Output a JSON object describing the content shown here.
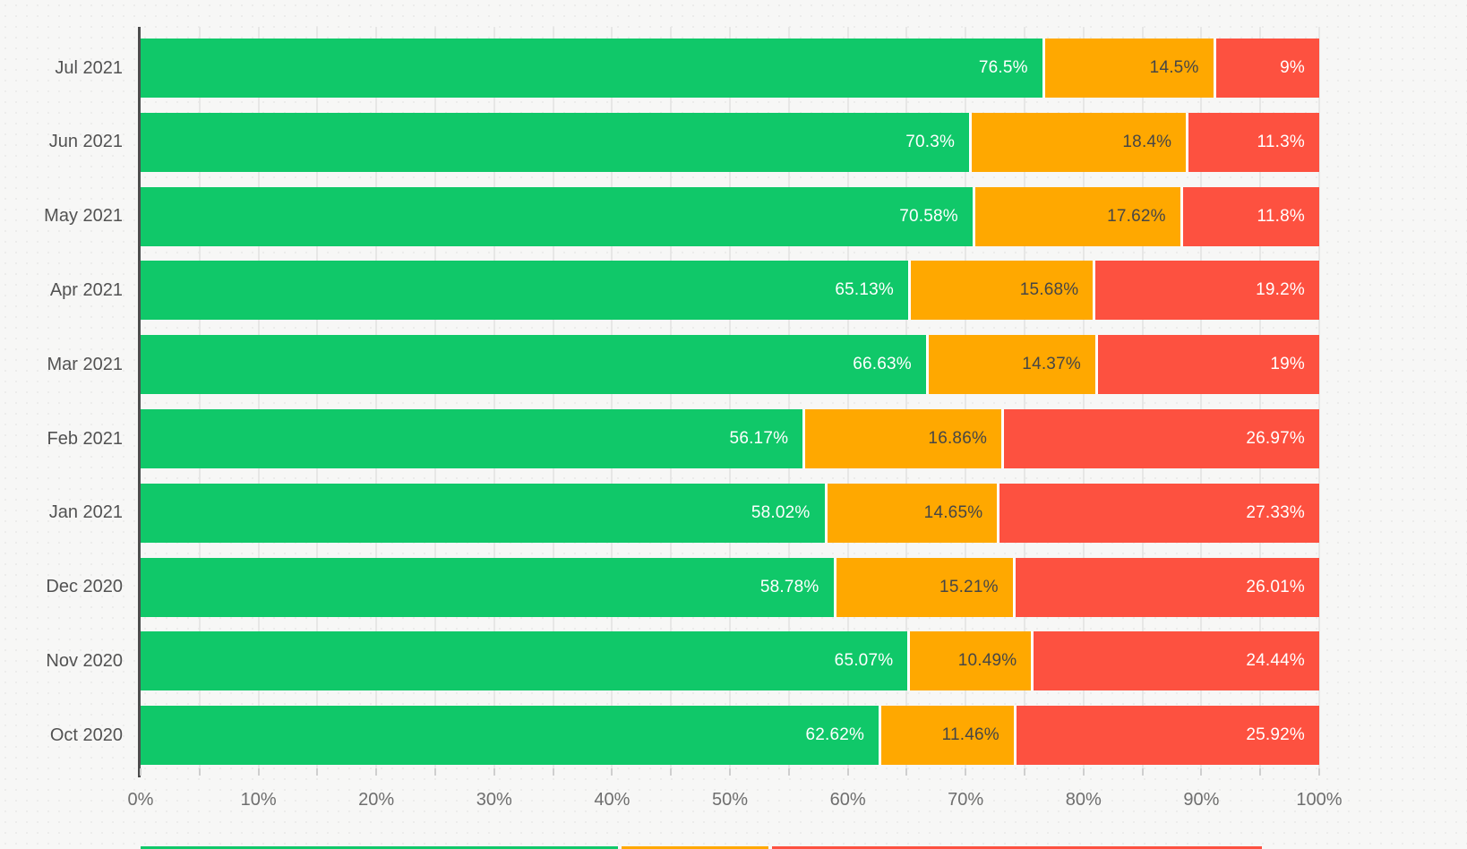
{
  "chart_data": {
    "type": "bar",
    "orientation": "horizontal",
    "stacked": true,
    "unit": "%",
    "legend": "none",
    "categories": [
      "Jul 2021",
      "Jun 2021",
      "May 2021",
      "Apr 2021",
      "Mar 2021",
      "Feb 2021",
      "Jan 2021",
      "Dec 2020",
      "Nov 2020",
      "Oct 2020"
    ],
    "series": [
      {
        "name": "green",
        "color": "#10C869",
        "label_color": "#ffffff",
        "values": [
          76.5,
          70.3,
          70.58,
          65.13,
          66.63,
          56.17,
          58.02,
          58.78,
          65.07,
          62.62
        ],
        "labels": [
          "76.5%",
          "70.3%",
          "70.58%",
          "65.13%",
          "66.63%",
          "56.17%",
          "58.02%",
          "58.78%",
          "65.07%",
          "62.62%"
        ]
      },
      {
        "name": "orange",
        "color": "#FFA800",
        "label_color": "#464646",
        "values": [
          14.5,
          18.4,
          17.62,
          15.68,
          14.37,
          16.86,
          14.65,
          15.21,
          10.49,
          11.46
        ],
        "labels": [
          "14.5%",
          "18.4%",
          "17.62%",
          "15.68%",
          "14.37%",
          "16.86%",
          "14.65%",
          "15.21%",
          "10.49%",
          "11.46%"
        ]
      },
      {
        "name": "red",
        "color": "#FD5140",
        "label_color": "#ffffff",
        "values": [
          9,
          11.3,
          11.8,
          19.2,
          19,
          26.97,
          27.33,
          26.01,
          24.44,
          25.92
        ],
        "labels": [
          "9%",
          "11.3%",
          "11.8%",
          "19.2%",
          "19%",
          "26.97%",
          "27.33%",
          "26.01%",
          "24.44%",
          "25.92%"
        ]
      }
    ],
    "x_axis": {
      "tick_labels": [
        "0%",
        "10%",
        "20%",
        "30%",
        "40%",
        "50%",
        "60%",
        "70%",
        "80%",
        "90%",
        "100%"
      ],
      "min": 0,
      "max": 100,
      "minor_grid_step": 5
    },
    "partial_bottom_bar": {
      "values": [
        40.5,
        12.5,
        41.5
      ]
    }
  },
  "colors": {
    "background": "#f7f7f6",
    "axis_line": "#4c4c4c",
    "grid_line": "#e7e7e6",
    "tick": "#cfcfcf",
    "x_label": "#6e6e6e",
    "category_label": "#525252"
  }
}
